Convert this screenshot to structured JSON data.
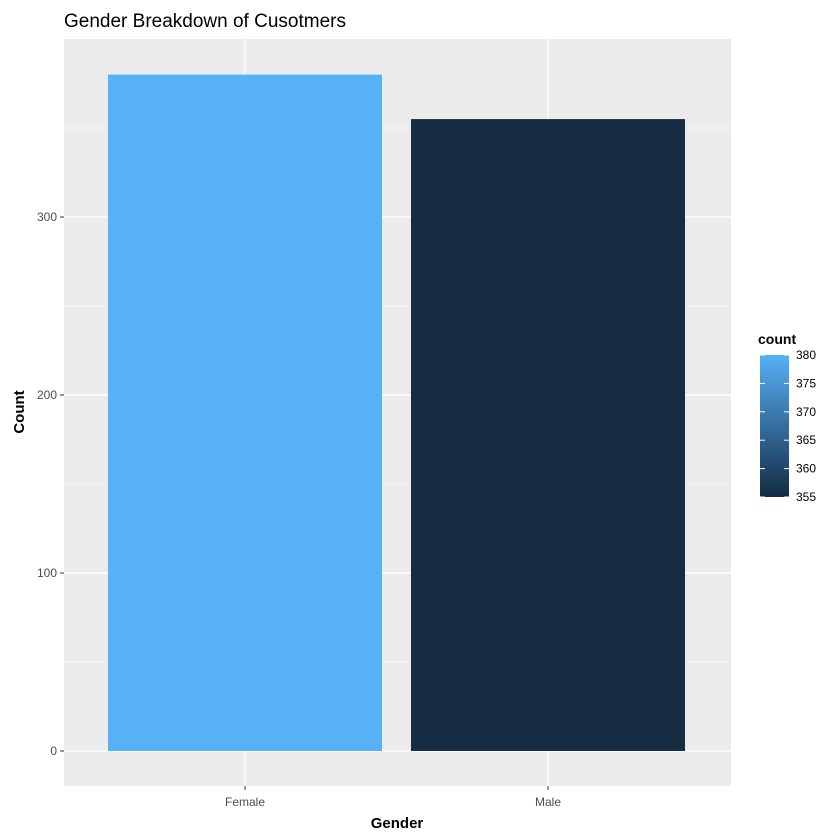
{
  "chart_data": {
    "type": "bar",
    "title": "Gender Breakdown of Cusotmers",
    "xlabel": "Gender",
    "ylabel": "Count",
    "categories": [
      "Female",
      "Male"
    ],
    "values": [
      380,
      355
    ],
    "ylim": [
      0,
      380
    ],
    "yticks": [
      "0",
      "100",
      "200",
      "300"
    ],
    "ytick_values": [
      0,
      100,
      200,
      300
    ],
    "grid": true,
    "legend": {
      "title": "count",
      "position": "right",
      "labels": [
        "380",
        "375",
        "370",
        "365",
        "360",
        "355"
      ],
      "label_values": [
        380,
        375,
        370,
        365,
        360,
        355
      ],
      "range": [
        355,
        380
      ],
      "color_low": "#132B43",
      "color_high": "#56B1F7"
    },
    "bar_colors": [
      "#56B1F7",
      "#162C43"
    ],
    "panel_background": "#EBEBEB",
    "grid_color": "#FFFFFF"
  }
}
